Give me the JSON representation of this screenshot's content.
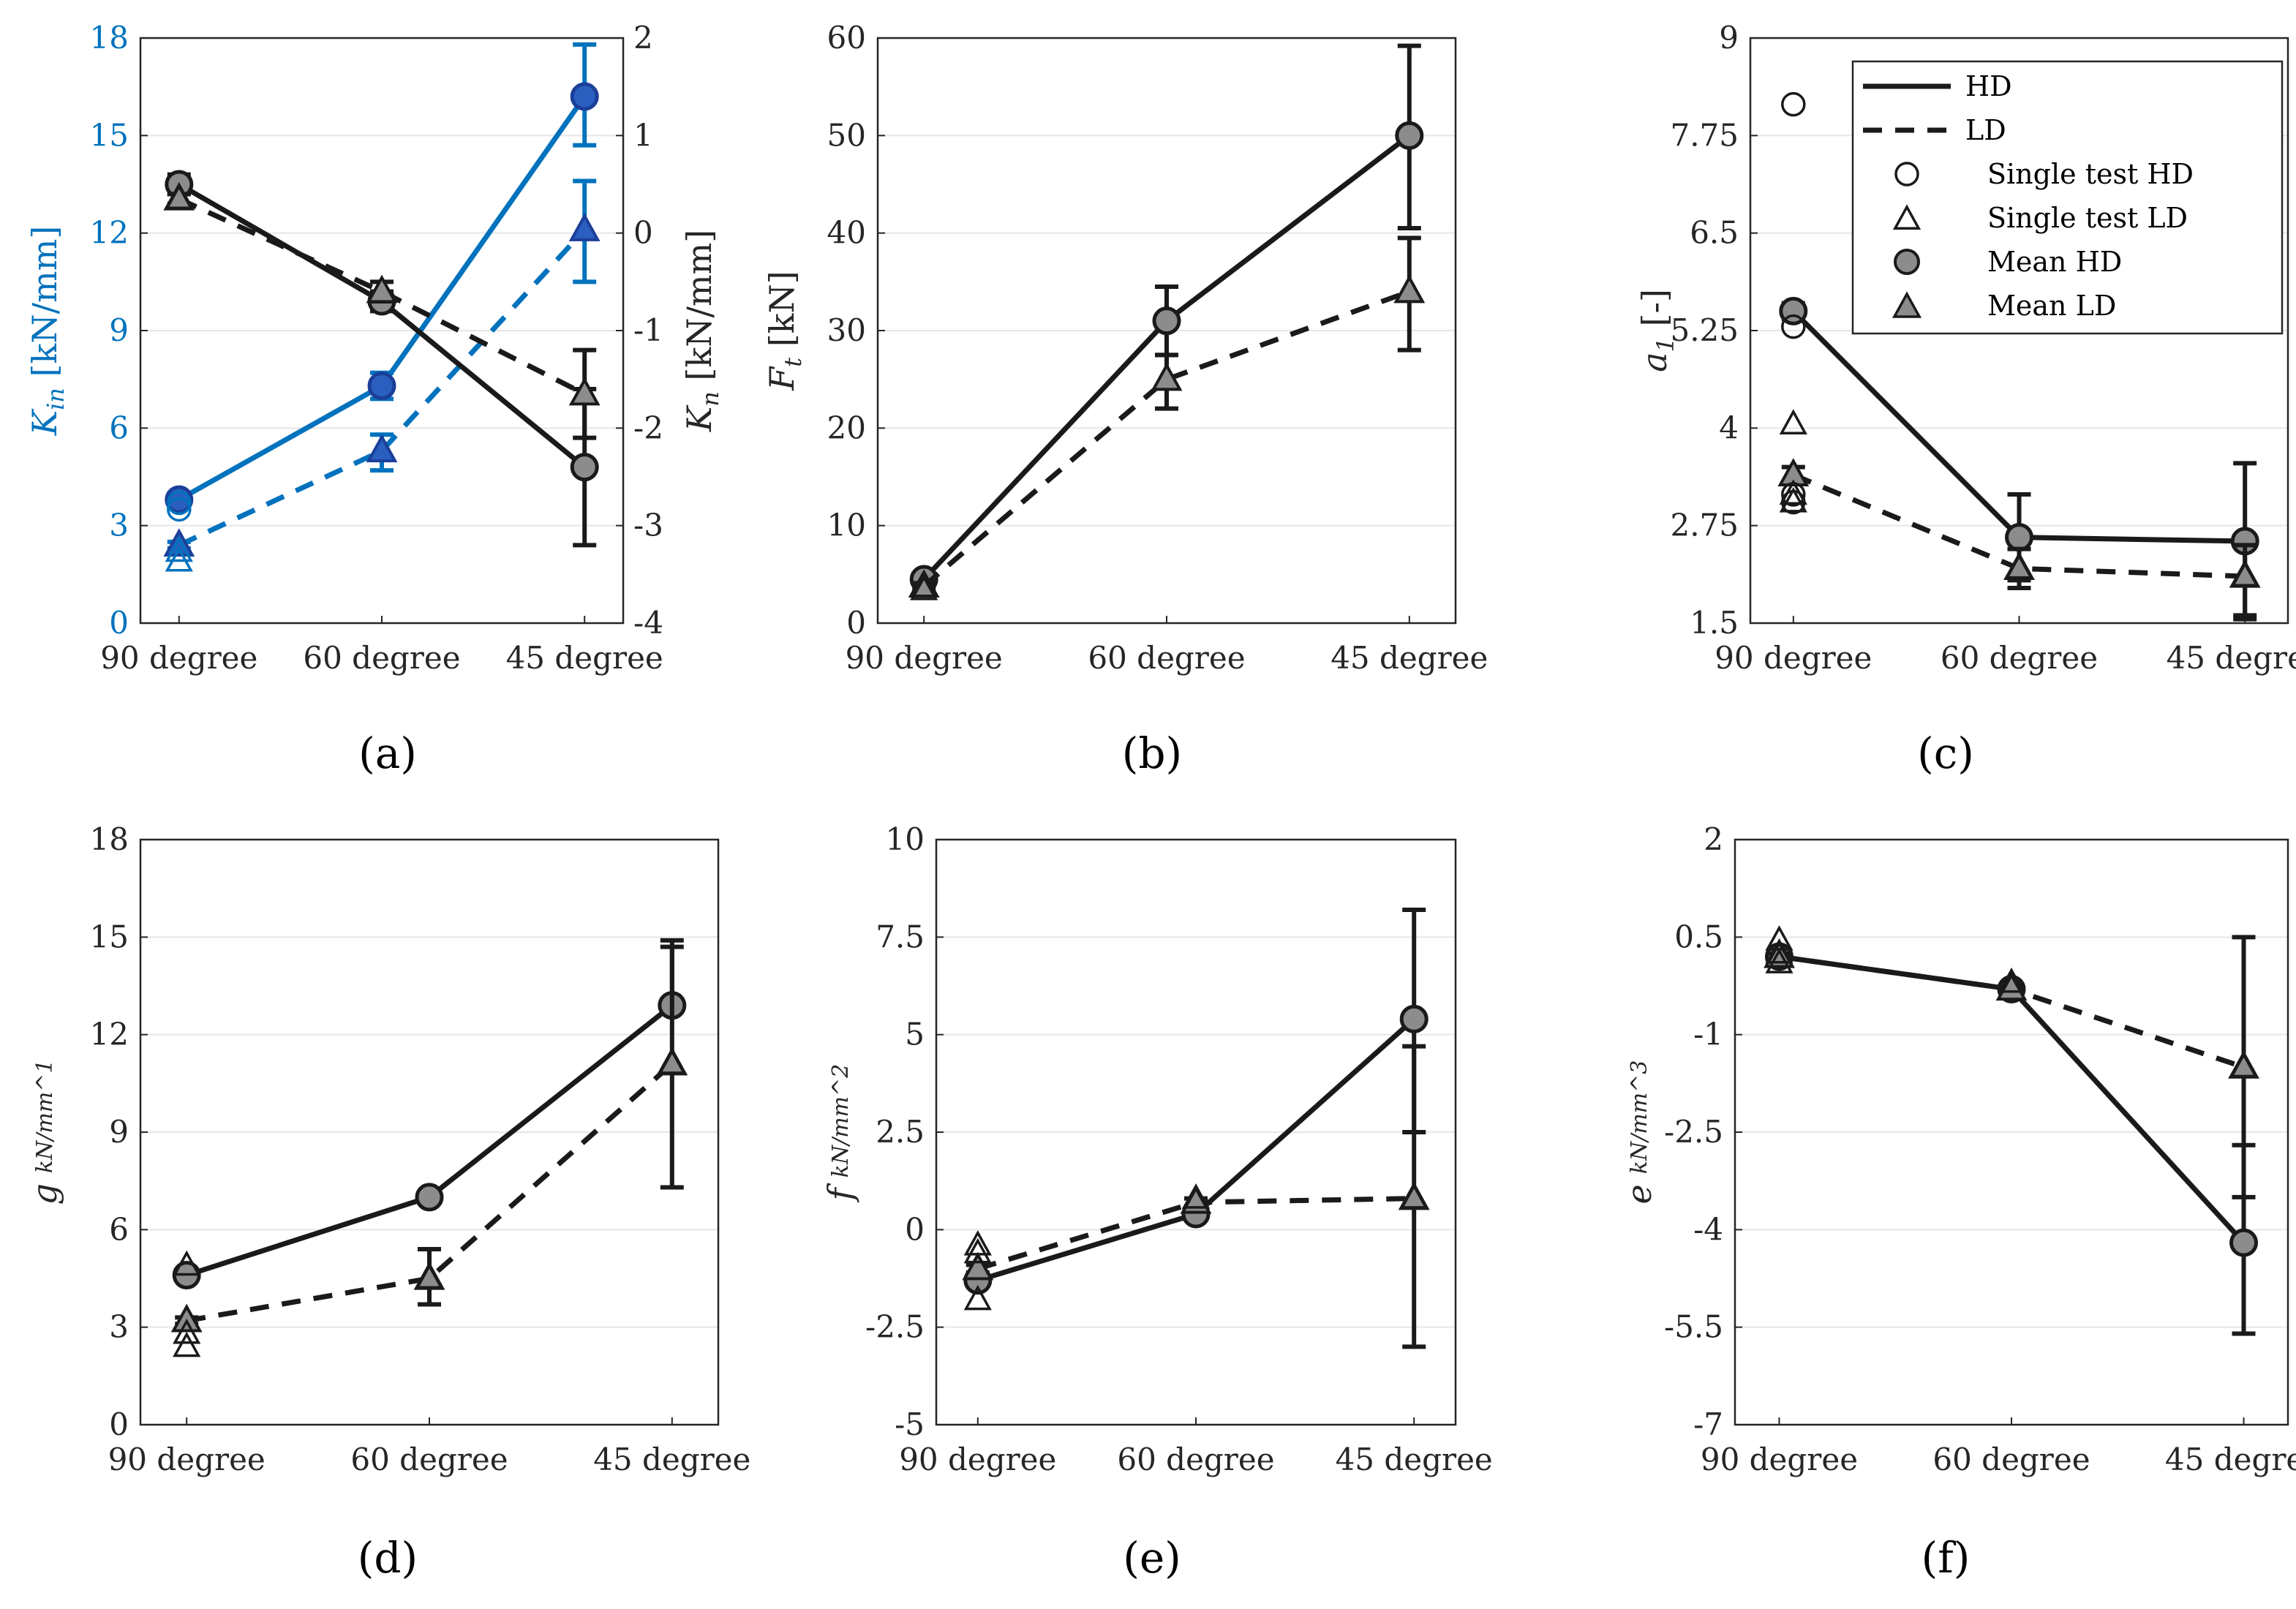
{
  "categories": [
    "90 degree",
    "60 degree",
    "45 degree"
  ],
  "colors": {
    "black": "#1a1a1a",
    "blue": "#0072bd",
    "grey_fill": "#8c8c8c",
    "axis": "#262626",
    "grid": "#e6e6e6"
  },
  "legend": {
    "placement": "top-right of panel (c)",
    "items": [
      "HD",
      "LD",
      "Single test HD",
      "Single test LD",
      "Mean HD",
      "Mean LD"
    ]
  },
  "chart_data": [
    {
      "id": "a",
      "type": "line",
      "panel_label": "(a)",
      "ylabel": "K",
      "ylabel_sub": "in",
      "ylabel_unit": " [kN/mm]",
      "ylim": [
        0,
        18
      ],
      "yticks": [
        0,
        3,
        6,
        9,
        12,
        15,
        18
      ],
      "ytick_labels": [
        "0",
        "3",
        "6",
        "9",
        "12",
        "15",
        "18"
      ],
      "y2label": "K",
      "y2label_sub": "n",
      "y2label_unit": " [kN/mm]",
      "y2lim": [
        -4,
        2
      ],
      "y2ticks": [
        -4,
        -3,
        -2,
        -1,
        0,
        1,
        2
      ],
      "y2tick_labels": [
        "-4",
        "-3",
        "-2",
        "-1",
        "0",
        "1",
        "2"
      ],
      "series": [
        {
          "name": "Kin HD",
          "axis": "left",
          "color": "blue",
          "dash": false,
          "marker": "circle",
          "values": [
            3.8,
            7.3,
            16.2
          ],
          "err_low": [
            3.7,
            6.9,
            14.7
          ],
          "err_high": [
            3.9,
            7.7,
            17.8
          ]
        },
        {
          "name": "Kin LD",
          "axis": "left",
          "color": "blue",
          "dash": true,
          "marker": "triangle",
          "values": [
            2.4,
            5.3,
            12.1
          ],
          "err_low": [
            2.3,
            4.7,
            10.5
          ],
          "err_high": [
            2.5,
            5.8,
            13.6
          ]
        },
        {
          "name": "Kn HD",
          "axis": "right",
          "color": "black",
          "dash": false,
          "marker": "circle",
          "values": [
            0.5,
            -0.7,
            -2.4
          ],
          "err_low": [
            0.4,
            -0.8,
            -3.2
          ],
          "err_high": [
            0.6,
            -0.6,
            -1.6
          ]
        },
        {
          "name": "Kn LD",
          "axis": "right",
          "color": "black",
          "dash": true,
          "marker": "triangle",
          "values": [
            0.35,
            -0.6,
            -1.65
          ],
          "err_low": [
            0.3,
            -0.7,
            -2.1
          ],
          "err_high": [
            0.4,
            -0.5,
            -1.2
          ]
        }
      ],
      "singles": [
        {
          "axis": "left",
          "color": "blue",
          "marker": "circle",
          "points": [
            [
              0,
              3.7
            ],
            [
              0,
              3.5
            ]
          ]
        },
        {
          "axis": "left",
          "color": "blue",
          "marker": "triangle",
          "points": [
            [
              0,
              1.9
            ],
            [
              0,
              2.2
            ]
          ]
        },
        {
          "axis": "right",
          "color": "black",
          "marker": "triangle",
          "points": [
            [
              0,
              0.35
            ]
          ]
        }
      ]
    },
    {
      "id": "b",
      "type": "line",
      "panel_label": "(b)",
      "ylabel": "F",
      "ylabel_sub": "t",
      "ylabel_unit": " [kN]",
      "ylim": [
        0,
        60
      ],
      "yticks": [
        0,
        10,
        20,
        30,
        40,
        50,
        60
      ],
      "ytick_labels": [
        "0",
        "10",
        "20",
        "30",
        "40",
        "50",
        "60"
      ],
      "series": [
        {
          "name": "HD",
          "color": "black",
          "dash": false,
          "marker": "circle",
          "values": [
            4.5,
            31,
            50
          ],
          "err_low": [
            4.2,
            27.5,
            40.5
          ],
          "err_high": [
            4.8,
            34.5,
            59.2
          ]
        },
        {
          "name": "LD",
          "color": "black",
          "dash": true,
          "marker": "triangle",
          "values": [
            3.8,
            25,
            34
          ],
          "err_low": [
            3.5,
            22,
            28
          ],
          "err_high": [
            4.1,
            27.5,
            39.5
          ]
        }
      ],
      "singles": [
        {
          "color": "black",
          "marker": "triangle",
          "points": [
            [
              0,
              3.4
            ]
          ]
        }
      ]
    },
    {
      "id": "c",
      "type": "line",
      "panel_label": "(c)",
      "ylabel": "a",
      "ylabel_sub": "1",
      "ylabel_unit": " [-]",
      "ylim": [
        1.5,
        9
      ],
      "yticks": [
        1.5,
        2.75,
        4,
        5.25,
        6.5,
        7.75,
        9
      ],
      "ytick_labels": [
        "1.5",
        "2.75",
        "4",
        "5.25",
        "6.5",
        "7.75",
        "9"
      ],
      "series": [
        {
          "name": "HD",
          "color": "black",
          "dash": false,
          "marker": "circle",
          "values": [
            5.5,
            2.6,
            2.55
          ],
          "err_low": [
            5.4,
            2.05,
            1.55
          ],
          "err_high": [
            5.6,
            3.15,
            3.55
          ]
        },
        {
          "name": "LD",
          "color": "black",
          "dash": true,
          "marker": "triangle",
          "values": [
            3.4,
            2.2,
            2.1
          ],
          "err_low": [
            3.3,
            1.95,
            1.6
          ],
          "err_high": [
            3.5,
            2.45,
            2.5
          ]
        }
      ],
      "singles": [
        {
          "color": "black",
          "marker": "circle",
          "points": [
            [
              0,
              8.15
            ],
            [
              0,
              5.3
            ],
            [
              0,
              3.15
            ],
            [
              0,
              3.05
            ]
          ]
        },
        {
          "color": "black",
          "marker": "triangle",
          "points": [
            [
              0,
              4.05
            ],
            [
              0,
              3.05
            ],
            [
              0,
              3.15
            ],
            [
              1,
              2.2
            ],
            [
              2,
              2.1
            ]
          ]
        }
      ]
    },
    {
      "id": "d",
      "type": "line",
      "panel_label": "(d)",
      "ylabel": "g",
      "ylabel_frac": "kN/mm^1",
      "ylim": [
        0,
        18
      ],
      "yticks": [
        0,
        3,
        6,
        9,
        12,
        15,
        18
      ],
      "ytick_labels": [
        "0",
        "3",
        "6",
        "9",
        "12",
        "15",
        "18"
      ],
      "series": [
        {
          "name": "HD",
          "color": "black",
          "dash": false,
          "marker": "circle",
          "values": [
            4.6,
            7.0,
            12.9
          ],
          "err_low": [
            4.5,
            6.9,
            12.9
          ],
          "err_high": [
            4.7,
            7.1,
            14.7
          ]
        },
        {
          "name": "LD",
          "color": "black",
          "dash": true,
          "marker": "triangle",
          "values": [
            3.2,
            4.5,
            11.1
          ],
          "err_low": [
            3.1,
            3.7,
            7.3
          ],
          "err_high": [
            3.3,
            5.4,
            14.9
          ]
        }
      ],
      "singles": [
        {
          "color": "black",
          "marker": "triangle",
          "points": [
            [
              0,
              4.9
            ],
            [
              0,
              2.4
            ],
            [
              0,
              2.8
            ],
            [
              1,
              4.5
            ],
            [
              2,
              11.1
            ]
          ]
        }
      ]
    },
    {
      "id": "e",
      "type": "line",
      "panel_label": "(e)",
      "ylabel": "f",
      "ylabel_frac": "kN/mm^2",
      "ylim": [
        -5,
        10
      ],
      "yticks": [
        -5,
        -2.5,
        0,
        2.5,
        5,
        7.5,
        10
      ],
      "ytick_labels": [
        "-5",
        "-2.5",
        "0",
        "2.5",
        "5",
        "7.5",
        "10"
      ],
      "series": [
        {
          "name": "HD",
          "color": "black",
          "dash": false,
          "marker": "circle",
          "values": [
            -1.3,
            0.4,
            5.4
          ],
          "err_low": [
            -1.4,
            0.3,
            2.5
          ],
          "err_high": [
            -1.2,
            0.5,
            8.2
          ]
        },
        {
          "name": "LD",
          "color": "black",
          "dash": true,
          "marker": "triangle",
          "values": [
            -1.0,
            0.7,
            0.8
          ],
          "err_low": [
            -1.1,
            0.6,
            -3.0
          ],
          "err_high": [
            -0.9,
            0.8,
            4.7
          ]
        }
      ],
      "singles": [
        {
          "color": "black",
          "marker": "triangle",
          "points": [
            [
              0,
              -0.4
            ],
            [
              0,
              -0.6
            ],
            [
              0,
              -1.8
            ],
            [
              1,
              0.8
            ],
            [
              2,
              0.8
            ]
          ]
        }
      ]
    },
    {
      "id": "f",
      "type": "line",
      "panel_label": "(f)",
      "ylabel": "e",
      "ylabel_frac": "kN/mm^3",
      "ylim": [
        -7,
        2
      ],
      "yticks": [
        -7,
        -5.5,
        -4,
        -2.5,
        -1,
        0.5,
        2
      ],
      "ytick_labels": [
        "-7",
        "-5.5",
        "-4",
        "-2.5",
        "-1",
        "0.5",
        "2"
      ],
      "series": [
        {
          "name": "HD",
          "color": "black",
          "dash": false,
          "marker": "circle",
          "values": [
            0.2,
            -0.3,
            -4.2
          ],
          "err_low": [
            0.15,
            -0.35,
            -5.6
          ],
          "err_high": [
            0.25,
            -0.25,
            -2.7
          ]
        },
        {
          "name": "LD",
          "color": "black",
          "dash": true,
          "marker": "triangle",
          "values": [
            0.2,
            -0.3,
            -1.5
          ],
          "err_low": [
            0.15,
            -0.35,
            -3.5
          ],
          "err_high": [
            0.25,
            -0.25,
            0.5
          ]
        }
      ],
      "singles": [
        {
          "color": "black",
          "marker": "triangle",
          "points": [
            [
              0,
              0.45
            ],
            [
              0,
              0.1
            ],
            [
              0,
              0.25
            ],
            [
              1,
              -0.2
            ],
            [
              2,
              -1.5
            ]
          ]
        }
      ]
    }
  ]
}
